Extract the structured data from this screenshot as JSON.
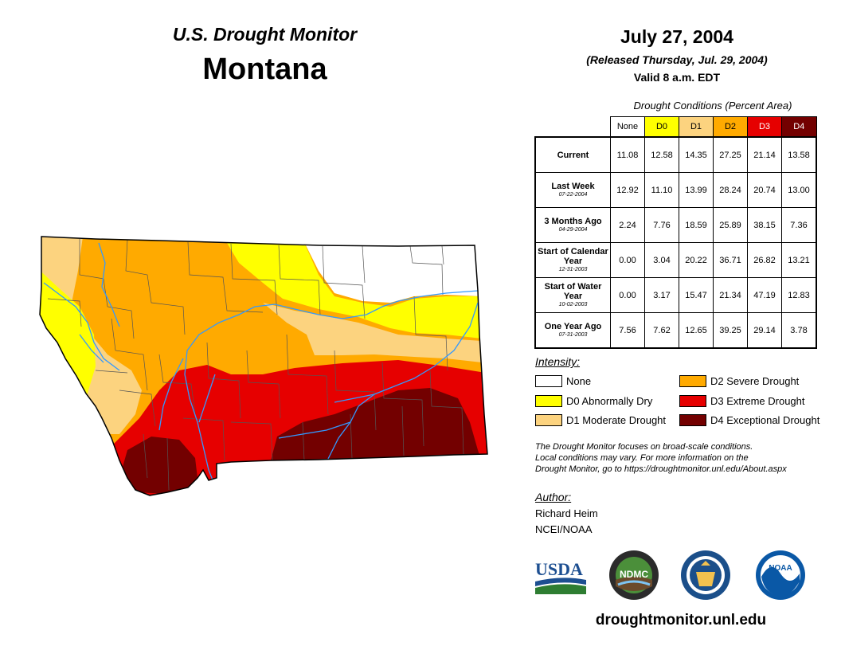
{
  "header": {
    "title": "U.S. Drought Monitor",
    "state": "Montana",
    "date": "July 27, 2004",
    "released": "(Released Thursday, Jul. 29, 2004)",
    "valid": "Valid 8 a.m. EDT"
  },
  "table": {
    "caption": "Drought Conditions (Percent Area)",
    "columns": [
      "None",
      "D0",
      "D1",
      "D2",
      "D3",
      "D4"
    ],
    "column_colors": [
      "#ffffff",
      "#ffff00",
      "#fcd37f",
      "#ffaa00",
      "#e60000",
      "#730000"
    ],
    "rows": [
      {
        "label": "Current",
        "date": "",
        "values": [
          "11.08",
          "12.58",
          "14.35",
          "27.25",
          "21.14",
          "13.58"
        ]
      },
      {
        "label": "Last Week",
        "date": "07-22-2004",
        "values": [
          "12.92",
          "11.10",
          "13.99",
          "28.24",
          "20.74",
          "13.00"
        ]
      },
      {
        "label": "3 Months Ago",
        "date": "04-29-2004",
        "values": [
          "2.24",
          "7.76",
          "18.59",
          "25.89",
          "38.15",
          "7.36"
        ]
      },
      {
        "label": "Start of Calendar Year",
        "date": "12-31-2003",
        "values": [
          "0.00",
          "3.04",
          "20.22",
          "36.71",
          "26.82",
          "13.21"
        ]
      },
      {
        "label": "Start of Water Year",
        "date": "10-02-2003",
        "values": [
          "0.00",
          "3.17",
          "15.47",
          "21.34",
          "47.19",
          "12.83"
        ]
      },
      {
        "label": "One Year Ago",
        "date": "07-31-2003",
        "values": [
          "7.56",
          "7.62",
          "12.65",
          "39.25",
          "29.14",
          "3.78"
        ]
      }
    ]
  },
  "legend": {
    "title": "Intensity:",
    "items": [
      {
        "label": "None",
        "color": "#ffffff"
      },
      {
        "label": "D0 Abnormally Dry",
        "color": "#ffff00"
      },
      {
        "label": "D1 Moderate Drought",
        "color": "#fcd37f"
      },
      {
        "label": "D2 Severe Drought",
        "color": "#ffaa00"
      },
      {
        "label": "D3 Extreme Drought",
        "color": "#e60000"
      },
      {
        "label": "D4 Exceptional Drought",
        "color": "#730000"
      }
    ]
  },
  "note": {
    "line1": "The Drought Monitor focuses on broad-scale conditions.",
    "line2": "Local conditions may vary. For more information on the",
    "line3": "Drought Monitor, go to https://droughtmonitor.unl.edu/About.aspx"
  },
  "author": {
    "label": "Author:",
    "name": "Richard Heim",
    "org": "NCEI/NOAA"
  },
  "logos": {
    "usda": "USDA",
    "ndmc": "NDMC",
    "noaa": "NOAA"
  },
  "footer": {
    "url": "droughtmonitor.unl.edu"
  }
}
